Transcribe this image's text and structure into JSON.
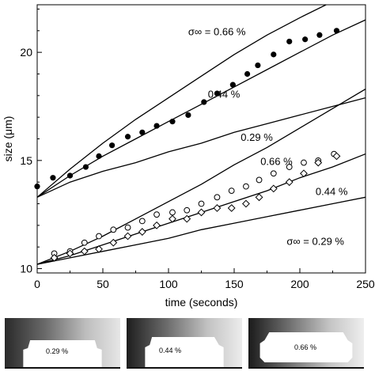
{
  "chart_data": {
    "type": "line",
    "xlabel": "time (seconds)",
    "ylabel": "size (μm)",
    "xlim": [
      0,
      250
    ],
    "ylim": [
      9.8,
      22.2
    ],
    "x_ticks": [
      0,
      50,
      100,
      150,
      200,
      250
    ],
    "y_ticks": [
      10,
      15,
      20
    ],
    "grid": false,
    "series": [
      {
        "name": "σ∞ = 0.66 %",
        "group": "upper",
        "style": "line",
        "x": [
          0,
          25,
          50,
          75,
          100,
          125,
          150,
          175,
          200,
          220
        ],
        "y": [
          13.3,
          14.6,
          15.8,
          16.9,
          17.9,
          18.9,
          19.9,
          20.8,
          21.6,
          22.2
        ]
      },
      {
        "name": "0.44 %",
        "group": "upper",
        "style": "line",
        "x": [
          0,
          25,
          50,
          75,
          100,
          125,
          150,
          175,
          200,
          225,
          250
        ],
        "y": [
          13.3,
          14.3,
          15.2,
          16.0,
          16.8,
          17.6,
          18.4,
          19.2,
          20.0,
          20.8,
          21.5
        ]
      },
      {
        "name": "0.29 %",
        "group": "upper",
        "style": "line",
        "x": [
          0,
          25,
          50,
          75,
          100,
          125,
          150,
          175,
          200,
          225,
          250
        ],
        "y": [
          13.3,
          14.0,
          14.5,
          14.9,
          15.4,
          15.8,
          16.3,
          16.7,
          17.1,
          17.5,
          17.9
        ]
      },
      {
        "name": "0.66 %",
        "group": "lower",
        "style": "line",
        "x": [
          0,
          25,
          50,
          75,
          100,
          125,
          150,
          175,
          200,
          225,
          250
        ],
        "y": [
          10.2,
          10.8,
          11.5,
          12.3,
          13.1,
          13.9,
          14.8,
          15.6,
          16.5,
          17.4,
          18.3
        ]
      },
      {
        "name": "0.44 %",
        "group": "lower",
        "style": "line",
        "x": [
          0,
          25,
          50,
          75,
          100,
          125,
          150,
          175,
          200,
          225,
          250
        ],
        "y": [
          10.2,
          10.6,
          11.1,
          11.6,
          12.1,
          12.6,
          13.1,
          13.6,
          14.2,
          14.7,
          15.3
        ]
      },
      {
        "name": "σ∞ = 0.29 %",
        "group": "lower",
        "style": "line",
        "x": [
          0,
          25,
          50,
          75,
          100,
          125,
          150,
          175,
          200,
          225,
          250
        ],
        "y": [
          10.2,
          10.5,
          10.8,
          11.1,
          11.4,
          11.8,
          12.1,
          12.4,
          12.7,
          13.0,
          13.3
        ]
      },
      {
        "name": "",
        "style": "marker",
        "marker": "filled-circle",
        "x": [
          0,
          12,
          25,
          37,
          47,
          57,
          69,
          80,
          91,
          103,
          115,
          127,
          137,
          149,
          160,
          168,
          180,
          192,
          204,
          215,
          228
        ],
        "y": [
          13.8,
          14.2,
          14.3,
          14.7,
          15.2,
          15.7,
          16.1,
          16.3,
          16.6,
          16.8,
          17.1,
          17.7,
          18.1,
          18.5,
          19.0,
          19.4,
          19.9,
          20.5,
          20.6,
          20.8,
          21.0
        ]
      },
      {
        "name": "",
        "style": "marker",
        "marker": "open-circle",
        "x": [
          13,
          25,
          36,
          47,
          58,
          69,
          80,
          91,
          103,
          114,
          125,
          137,
          148,
          159,
          169,
          180,
          192,
          203,
          214,
          226
        ],
        "y": [
          10.7,
          10.8,
          11.2,
          11.5,
          11.8,
          11.9,
          12.2,
          12.5,
          12.6,
          12.7,
          13.0,
          13.3,
          13.6,
          13.8,
          14.1,
          14.4,
          14.7,
          14.9,
          15.0,
          15.3
        ]
      },
      {
        "name": "",
        "style": "marker",
        "marker": "open-diamond",
        "x": [
          13,
          25,
          36,
          47,
          58,
          69,
          80,
          91,
          103,
          114,
          125,
          137,
          148,
          159,
          169,
          180,
          192,
          203,
          214,
          228
        ],
        "y": [
          10.5,
          10.7,
          10.8,
          10.9,
          11.2,
          11.5,
          11.7,
          12.0,
          12.3,
          12.3,
          12.6,
          12.8,
          12.8,
          13.0,
          13.3,
          13.7,
          14.0,
          14.4,
          14.9,
          15.2
        ]
      }
    ],
    "annotations": [
      {
        "text": "σ∞ = 0.66 %",
        "x": 115,
        "y": 20.8
      },
      {
        "text": "0.44 %",
        "x": 130,
        "y": 17.9
      },
      {
        "text": "0.29 %",
        "x": 155,
        "y": 15.9
      },
      {
        "text": "0.66 %",
        "x": 170,
        "y": 14.8
      },
      {
        "text": "0.44 %",
        "x": 212,
        "y": 13.4
      },
      {
        "text": "σ∞ = 0.29 %",
        "x": 190,
        "y": 11.1
      }
    ]
  },
  "image_strip": {
    "panels": [
      {
        "label": "0.29 %"
      },
      {
        "label": "0.44 %"
      },
      {
        "label": "0.66 %"
      }
    ]
  }
}
